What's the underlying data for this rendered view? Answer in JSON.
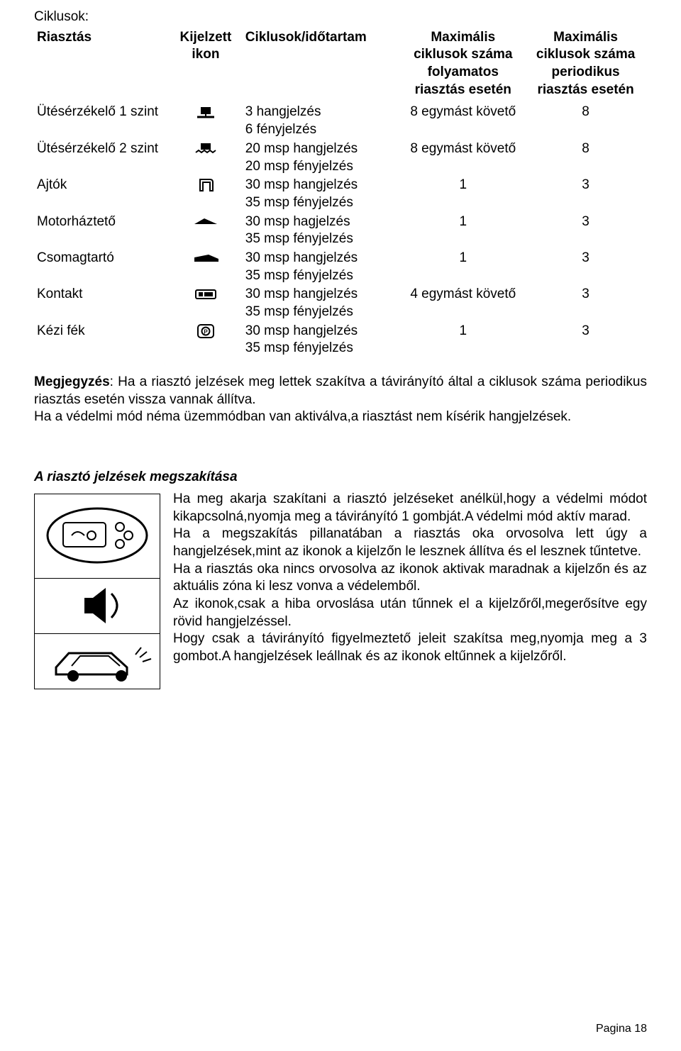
{
  "title": "Ciklusok:",
  "table": {
    "headers": {
      "col1": "Riasztás",
      "col2": "Kijelzett ikon",
      "col3": "Ciklusok/időtartam",
      "col4": "Maximális ciklusok száma folyamatos riasztás esetén",
      "col5": "Maximális ciklusok száma periodikus riasztás esetén"
    },
    "rows": [
      {
        "alarm": "Ütésérzékelő 1 szint",
        "icon": "shock1-icon",
        "cycles_a": "3 hangjelzés",
        "cycles_b": "6 fényjelzés",
        "cont": "8 egymást követő",
        "period": "8"
      },
      {
        "alarm": "Ütésérzékelő 2 szint",
        "icon": "shock2-icon",
        "cycles_a": "20 msp hangjelzés",
        "cycles_b": "20 msp fényjelzés",
        "cont": "8 egymást követő",
        "period": "8"
      },
      {
        "alarm": "Ajtók",
        "icon": "doors-icon",
        "cycles_a": "30 msp hangjelzés",
        "cycles_b": "35 msp fényjelzés",
        "cont": "1",
        "period": "3"
      },
      {
        "alarm": "Motorháztető",
        "icon": "hood-icon",
        "cycles_a": "30 msp hagjelzés",
        "cycles_b": "35 msp fényjelzés",
        "cont": "1",
        "period": "3"
      },
      {
        "alarm": "Csomagtartó",
        "icon": "trunk-icon",
        "cycles_a": "30 msp hangjelzés",
        "cycles_b": "35 msp fényjelzés",
        "cont": "1",
        "period": "3"
      },
      {
        "alarm": "Kontakt",
        "icon": "ignition-icon",
        "cycles_a": "30 msp hangjelzés",
        "cycles_b": "35 msp fényjelzés",
        "cont": "4 egymást követő",
        "period": "3"
      },
      {
        "alarm": "Kézi fék",
        "icon": "handbrake-icon",
        "cycles_a": "30 msp hangjelzés",
        "cycles_b": "35 msp fényjelzés",
        "cont": "1",
        "period": "3"
      }
    ]
  },
  "note": {
    "label": "Megjegyzés",
    "text1": ": Ha a riasztó jelzések meg lettek szakítva a távirányító által a ciklusok száma periodikus riasztás esetén vissza vannak állítva.",
    "text2": "Ha a védelmi mód néma üzemmódban van aktiválva,a riasztást nem kísérik hangjelzések."
  },
  "interrupt": {
    "title": "A riasztó jelzések megszakítása",
    "p1": "Ha meg akarja szakítani a riasztó jelzéseket anélkül,hogy a védelmi módot kikapcsolná,nyomja meg a távirányító 1 gombját.A védelmi mód aktív marad.",
    "p2": "Ha a megszakítás pillanatában a riasztás oka orvosolva lett úgy a hangjelzések,mint az ikonok a kijelzőn le lesznek állítva és el lesznek tűntetve.",
    "p3": "Ha a riasztás oka nincs orvosolva az ikonok aktivak maradnak a kijelzőn és az aktuális zóna ki lesz vonva a védelemből.",
    "p4": "Az ikonok,csak a hiba orvoslása után tűnnek el a kijelzőről,megerősítve egy rövid hangjelzéssel.",
    "p5": "Hogy csak a távirányító figyelmeztető jeleit szakítsa meg,nyomja meg a 3 gombot.A hangjelzések leállnak és az ikonok eltűnnek a kijelzőről."
  },
  "page": "Pagina 18",
  "icons": {
    "shock1-icon": "<svg viewBox='0 0 44 22'><rect x='15' y='4' width='14' height='10' fill='#000'/><path d='M10 18 h24' stroke='#000' stroke-width='3'/><path d='M22 14 v5' stroke='#000' stroke-width='2'/></svg>",
    "shock2-icon": "<svg viewBox='0 0 44 22'><rect x='15' y='3' width='14' height='9' fill='#000'/><path d='M8 16 l4 -3 l4 3 l4 -3 l4 3 l4 -3 l4 3 l4 -3' stroke='#000' stroke-width='2' fill='none'/></svg>",
    "doors-icon": "<svg viewBox='0 0 44 22'><path d='M14 3 h14 q4 0 4 4 v12 h-4 v-12 h-10 v12 h-4 z' fill='none' stroke='#000' stroke-width='2'/></svg>",
    "hood-icon": "<svg viewBox='0 0 44 22'><path d='M6 14 L20 6 L38 14 Z' fill='#000'/></svg>",
    "trunk-icon": "<svg viewBox='0 0 44 22'><path d='M6 10 L26 6 L40 12 L40 16 L6 16 Z' fill='#000'/></svg>",
    "ignition-icon": "<svg viewBox='0 0 44 22'><rect x='8' y='5' width='28' height='12' rx='2' fill='none' stroke='#000' stroke-width='2'/><rect x='12' y='8' width='6' height='6' fill='#000'/><rect x='20' y='8' width='12' height='6' fill='#000'/></svg>",
    "handbrake-icon": "<svg viewBox='0 0 44 22'><rect x='11' y='2' width='22' height='18' rx='4' fill='none' stroke='#000' stroke-width='2'/><circle cx='22' cy='11' r='5.5' fill='none' stroke='#000' stroke-width='2'/><text x='22' y='14.5' font-size='8' text-anchor='middle' font-family='Arial' font-weight='bold'>P</text></svg>"
  },
  "figure": {
    "pager": "<svg viewBox='0 0 176 118'><ellipse cx='88' cy='58' rx='70' ry='38' fill='none' stroke='#000' stroke-width='3'/><rect x='40' y='40' width='60' height='34' rx='4' fill='#fff' stroke='#000' stroke-width='2'/><circle cx='120' cy='46' r='6' fill='none' stroke='#000' stroke-width='2'/><circle cx='132' cy='58' r='6' fill='none' stroke='#000' stroke-width='2'/><circle cx='120' cy='70' r='6' fill='none' stroke='#000' stroke-width='2'/><path d='M52 58 q8 -10 18 0' fill='none' stroke='#000' stroke-width='2'/><circle cx='80' cy='58' r='6' fill='none' stroke='#000' stroke-width='2'/></svg>",
    "speaker": "<svg viewBox='0 0 176 78'><path d='M70 28 h12 l18 -14 v50 l-18 -14 h-12 z' fill='#000'/><path d='M108 22 q16 17 0 34' fill='none' stroke='#000' stroke-width='3'/></svg>",
    "car": "<svg viewBox='0 0 176 78'><path d='M30 48 l18 -20 h60 l22 20 v10 h-100 z' fill='none' stroke='#000' stroke-width='3'/><circle cx='54' cy='60' r='8' fill='#000'/><circle cx='122' cy='60' r='8' fill='#000'/><path d='M52 46 l12 -14 h40 l16 14' fill='none' stroke='#000' stroke-width='2'/><path d='M142 30 l8 -10 M148 34 l10 -8 M152 40 l12 -4' stroke='#000' stroke-width='2'/></svg>"
  }
}
